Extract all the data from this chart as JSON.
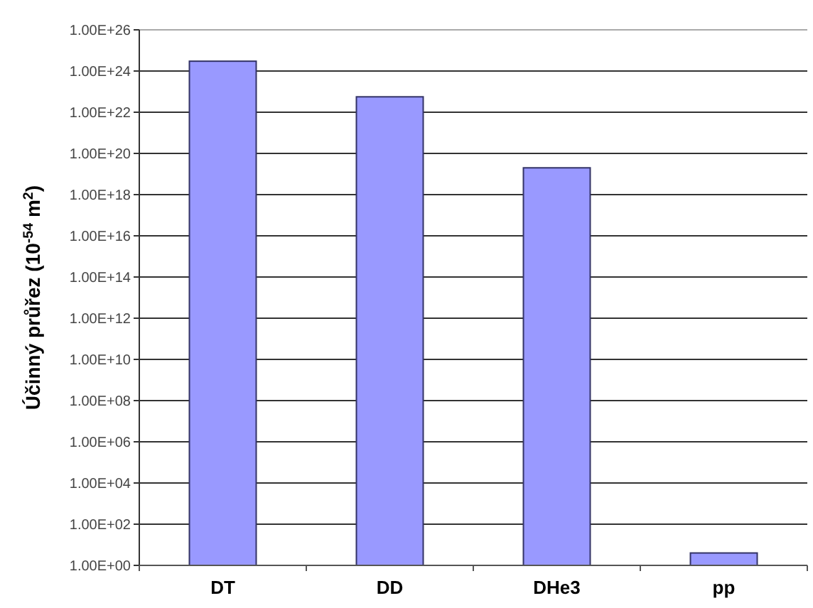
{
  "chart_data": {
    "type": "bar",
    "ylabel": "Účinný průřez (10$^{-54}$ m$^{2}$)",
    "categories": [
      "DT",
      "DD",
      "DHe3",
      "pp"
    ],
    "values": [
      3e+24,
      5.6e+22,
      2e+19,
      4
    ],
    "color": "#9999ff",
    "log": true,
    "ylim": [
      1,
      1e+26
    ],
    "yticks": [
      {
        "value": 1,
        "label": "1.00E+00"
      },
      {
        "value": 100.0,
        "label": "1.00E+02"
      },
      {
        "value": 10000.0,
        "label": "1.00E+04"
      },
      {
        "value": 1000000.0,
        "label": "1.00E+06"
      },
      {
        "value": 100000000.0,
        "label": "1.00E+08"
      },
      {
        "value": 10000000000.0,
        "label": "1.00E+10"
      },
      {
        "value": 1000000000000.0,
        "label": "1.00E+12"
      },
      {
        "value": 100000000000000.0,
        "label": "1.00E+14"
      },
      {
        "value": 1e+16,
        "label": "1.00E+16"
      },
      {
        "value": 1e+18,
        "label": "1.00E+18"
      },
      {
        "value": 1e+20,
        "label": "1.00E+20"
      },
      {
        "value": 1e+22,
        "label": "1.00E+22"
      },
      {
        "value": 1e+24,
        "label": "1.00E+24"
      },
      {
        "value": 1e+26,
        "label": "1.00E+26"
      }
    ],
    "grid": true
  }
}
